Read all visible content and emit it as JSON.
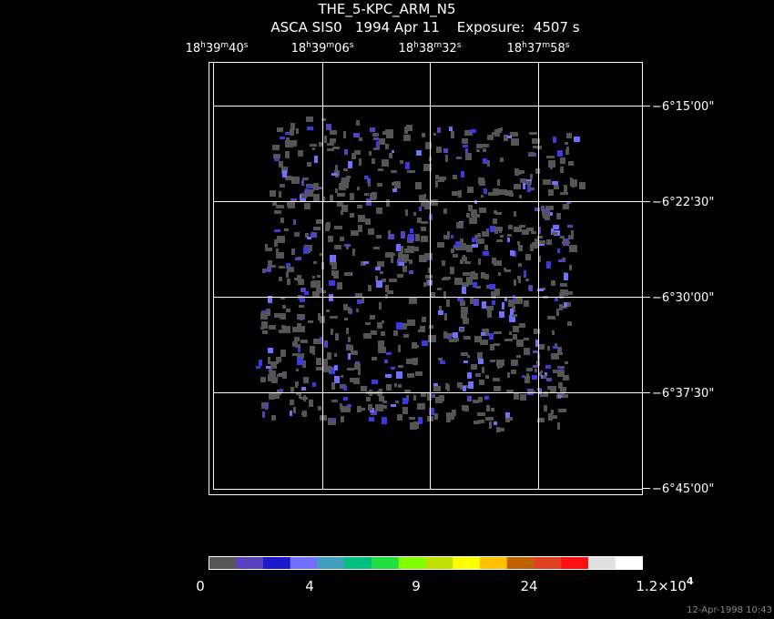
{
  "header": {
    "title": "THE_5-KPC_ARM_N5",
    "subtitle": "ASCA SIS0   1994 Apr 11    Exposure:  4507 s"
  },
  "ra_labels": [
    [
      "18",
      "h",
      "39",
      "m",
      "40",
      "s"
    ],
    [
      "18",
      "h",
      "39",
      "m",
      "06",
      "s"
    ],
    [
      "18",
      "h",
      "38",
      "m",
      "32",
      "s"
    ],
    [
      "18",
      "h",
      "37",
      "m",
      "58",
      "s"
    ]
  ],
  "dec_labels": [
    "−6°15'00\"",
    "−6°22'30\"",
    "−6°30'00\"",
    "−6°37'30\"",
    "−6°45'00\""
  ],
  "colorbar": {
    "colors": [
      "#555555",
      "#5a3fbf",
      "#1a1acc",
      "#7070ff",
      "#3f9fbf",
      "#00c080",
      "#20e040",
      "#80ff00",
      "#c0e000",
      "#ffff00",
      "#ffc000",
      "#c06000",
      "#e04020",
      "#ff1010",
      "#e0e0e0",
      "#ffffff"
    ],
    "labels": [
      [
        "0"
      ],
      [
        "4"
      ],
      [
        "9"
      ],
      [
        "24"
      ],
      [
        "1.2×10",
        "4"
      ]
    ]
  },
  "timestamp": "12-Apr-1998 10:43"
}
